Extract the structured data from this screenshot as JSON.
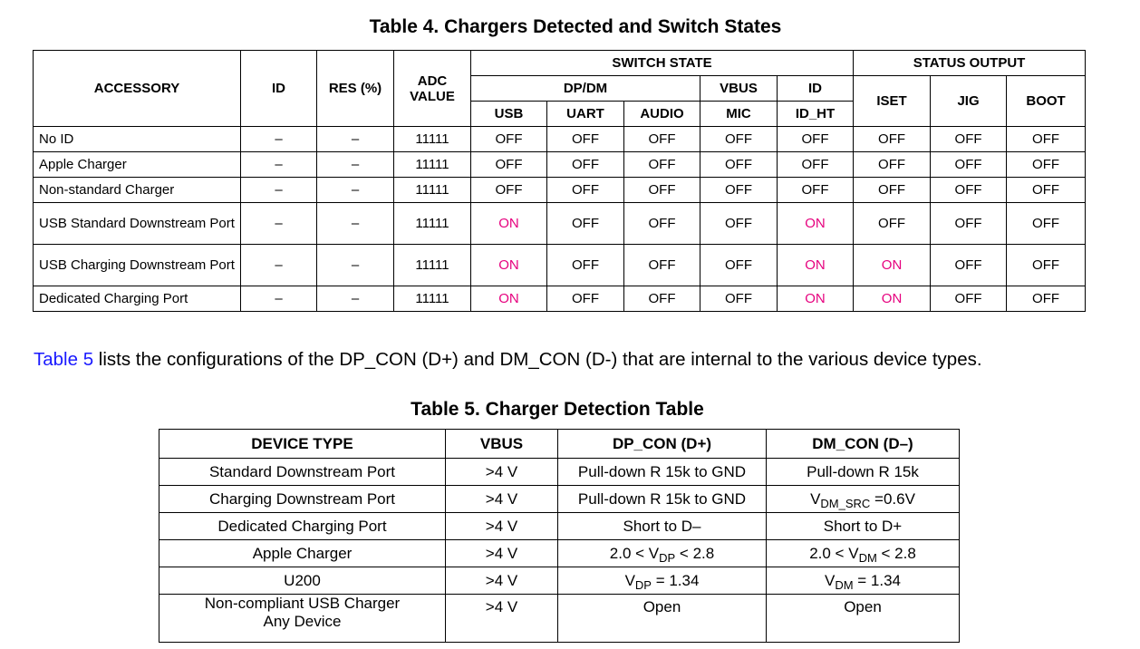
{
  "table4": {
    "caption": "Table 4. Chargers Detected and Switch States",
    "headers": {
      "accessory": "ACCESSORY",
      "id": "ID",
      "res": "RES (%)",
      "adc": "ADC VALUE",
      "switch_state": "SWITCH STATE",
      "status_output": "STATUS OUTPUT",
      "dpdm": "DP/DM",
      "vbus": "VBUS",
      "id_group": "ID",
      "usb": "USB",
      "uart": "UART",
      "audio": "AUDIO",
      "mic": "MIC",
      "id_ht": "ID_HT",
      "iset": "ISET",
      "jig": "JIG",
      "boot": "BOOT"
    },
    "rows": [
      {
        "accessory": "No ID",
        "id": "–",
        "res": "–",
        "adc": "11111",
        "usb": "OFF",
        "uart": "OFF",
        "audio": "OFF",
        "mic": "OFF",
        "id_ht": "OFF",
        "iset": "OFF",
        "jig": "OFF",
        "boot": "OFF"
      },
      {
        "accessory": "Apple Charger",
        "id": "–",
        "res": "–",
        "adc": "11111",
        "usb": "OFF",
        "uart": "OFF",
        "audio": "OFF",
        "mic": "OFF",
        "id_ht": "OFF",
        "iset": "OFF",
        "jig": "OFF",
        "boot": "OFF"
      },
      {
        "accessory": "Non-standard Charger",
        "id": "–",
        "res": "–",
        "adc": "11111",
        "usb": "OFF",
        "uart": "OFF",
        "audio": "OFF",
        "mic": "OFF",
        "id_ht": "OFF",
        "iset": "OFF",
        "jig": "OFF",
        "boot": "OFF"
      },
      {
        "accessory": "USB Standard Downstream Port",
        "id": "–",
        "res": "–",
        "adc": "11111",
        "usb": "ON",
        "uart": "OFF",
        "audio": "OFF",
        "mic": "OFF",
        "id_ht": "ON",
        "iset": "OFF",
        "jig": "OFF",
        "boot": "OFF"
      },
      {
        "accessory": "USB Charging Downstream Port",
        "id": "–",
        "res": "–",
        "adc": "11111",
        "usb": "ON",
        "uart": "OFF",
        "audio": "OFF",
        "mic": "OFF",
        "id_ht": "ON",
        "iset": "ON",
        "jig": "OFF",
        "boot": "OFF"
      },
      {
        "accessory": "Dedicated Charging Port",
        "id": "–",
        "res": "–",
        "adc": "11111",
        "usb": "ON",
        "uart": "OFF",
        "audio": "OFF",
        "mic": "OFF",
        "id_ht": "ON",
        "iset": "ON",
        "jig": "OFF",
        "boot": "OFF"
      }
    ]
  },
  "paragraph": {
    "link_text": "Table 5",
    "text": " lists the configurations of the DP_CON (D+) and DM_CON (D-) that are internal to the various device types."
  },
  "table5": {
    "caption": "Table 5. Charger Detection Table",
    "headers": {
      "device_type": "DEVICE TYPE",
      "vbus": "VBUS",
      "dp_con": "DP_CON (D+)",
      "dm_con": "DM_CON (D–)"
    },
    "rows": [
      {
        "device_type": "Standard Downstream Port",
        "vbus": ">4 V",
        "dp_con": "Pull-down R 15k to GND",
        "dm_con": "Pull-down R 15k"
      },
      {
        "device_type": "Charging Downstream Port",
        "vbus": ">4 V",
        "dp_con": "Pull-down R 15k to GND",
        "dm_con_pre": "V",
        "dm_con_sub": "DM_SRC",
        "dm_con_post": " =0.6V"
      },
      {
        "device_type": "Dedicated Charging Port",
        "vbus": ">4 V",
        "dp_con": "Short to D–",
        "dm_con": "Short to D+"
      },
      {
        "device_type": "Apple Charger",
        "vbus": ">4 V",
        "dp_con_pre": "2.0 < V",
        "dp_con_sub": "DP",
        "dp_con_post": " < 2.8",
        "dm_con_pre": "2.0 < V",
        "dm_con_sub": "DM",
        "dm_con_post": " < 2.8"
      },
      {
        "device_type": "U200",
        "vbus": ">4 V",
        "dp_con_pre": "V",
        "dp_con_sub": "DP",
        "dp_con_post": " = 1.34",
        "dm_con_pre": "V",
        "dm_con_sub": "DM",
        "dm_con_post": " = 1.34"
      },
      {
        "device_type": "Non-compliant USB Charger Any Device",
        "vbus": ">4 V",
        "dp_con": "Open",
        "dm_con": "Open"
      }
    ]
  },
  "colors": {
    "on_state": "#e6007e",
    "link": "#1a1aff"
  }
}
